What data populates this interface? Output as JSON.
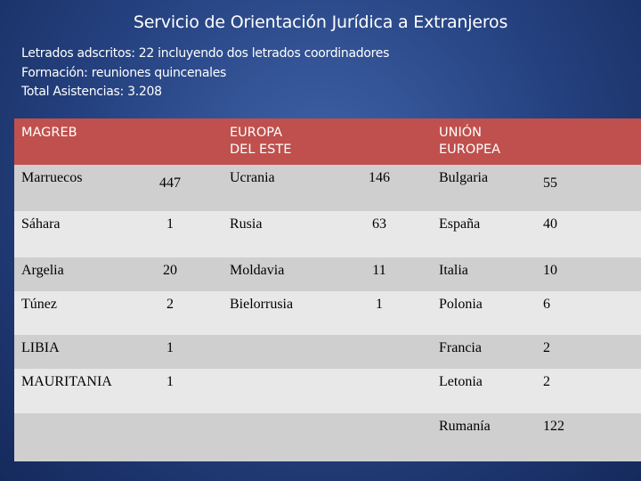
{
  "title": "Servicio de Orientación Jurídica a Extranjeros",
  "info": {
    "line1": "Letrados adscritos: 22 incluyendo dos letrados coordinadores",
    "line2": "Formación: reuniones quincenales",
    "line3": "Total Asistencias: 3.208"
  },
  "table": {
    "headers": [
      "MAGREB",
      "EUROPA DEL ESTE",
      "UNIÓN EUROPEA"
    ],
    "header_lines": {
      "europa": [
        "EUROPA",
        "DEL ESTE"
      ],
      "union": [
        "UNIÓN",
        "EUROPEA"
      ]
    },
    "rows": [
      {
        "magreb": "Marruecos",
        "magreb_n": "447",
        "este": "Ucrania",
        "este_n": "146",
        "ue": "Bulgaria",
        "ue_n": "55"
      },
      {
        "magreb": "Sáhara",
        "magreb_n": "1",
        "este": "Rusia",
        "este_n": "63",
        "ue": "España",
        "ue_n": "40"
      },
      {
        "magreb": "Argelia",
        "magreb_n": "20",
        "este": "Moldavia",
        "este_n": "11",
        "ue": "Italia",
        "ue_n": "10"
      },
      {
        "magreb": "Túnez",
        "magreb_n": "2",
        "este": "Bielorrusia",
        "este_n": "1",
        "ue": "Polonia",
        "ue_n": "6"
      },
      {
        "magreb": "LIBIA",
        "magreb_n": "1",
        "este": "",
        "este_n": "",
        "ue": "Francia",
        "ue_n": "2"
      },
      {
        "magreb": "MAURITANIA",
        "magreb_n": "1",
        "este": "",
        "este_n": "",
        "ue": "Letonia",
        "ue_n": "2"
      },
      {
        "magreb": "",
        "magreb_n": "",
        "este": "",
        "este_n": "",
        "ue": "Rumanía",
        "ue_n": "122"
      }
    ],
    "colors": {
      "header_bg": "#c0504d",
      "row_dark": "#cfcfcf",
      "row_light": "#e8e8e8",
      "slide_bg": "#24407e"
    }
  }
}
